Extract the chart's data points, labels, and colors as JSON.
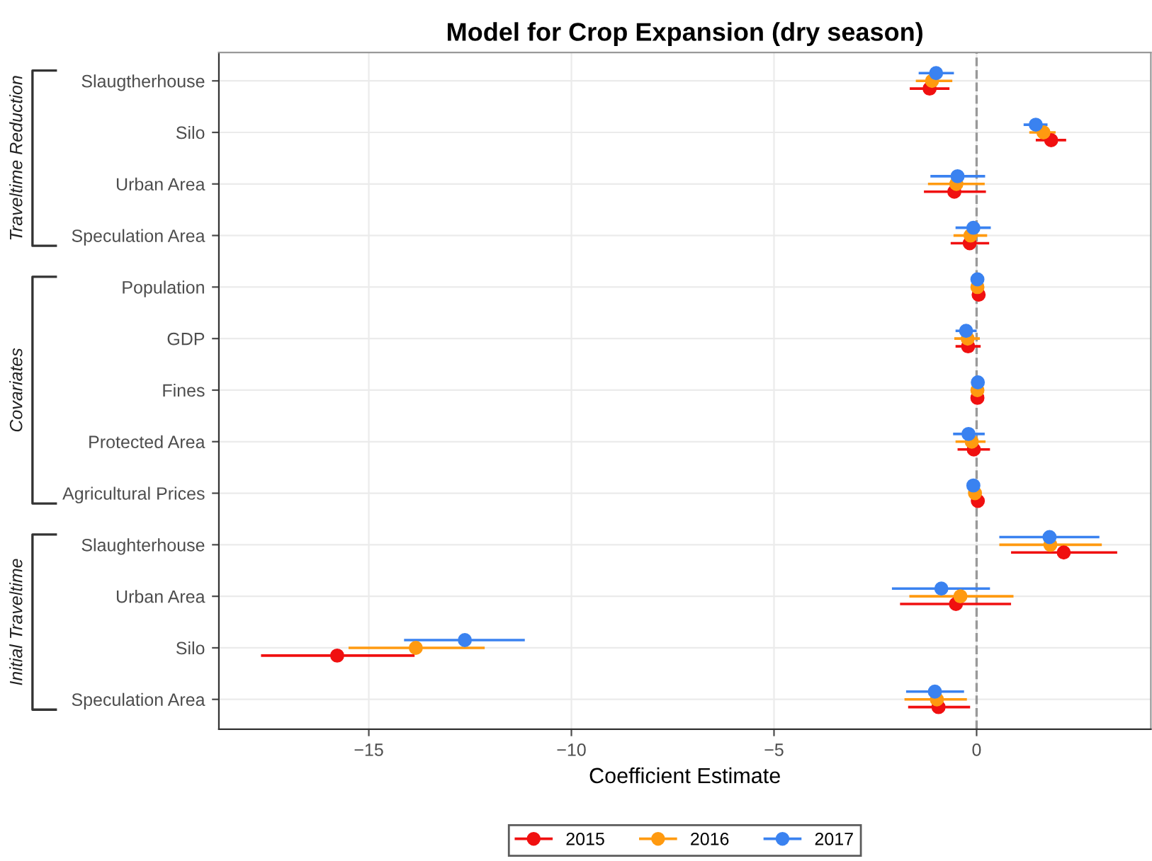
{
  "chart_data": {
    "type": "scatter",
    "title": "Model for Crop Expansion (dry season)",
    "xlabel": "Coefficient Estimate",
    "orientation": "horizontal",
    "categories": [
      "Slaugtherhouse",
      "Silo",
      "Urban Area",
      "Speculation Area",
      "Population",
      "GDP",
      "Fines",
      "Protected Area",
      "Agricultural Prices",
      "Slaughterhouse",
      "Urban Area",
      "Silo",
      "Speculation Area"
    ],
    "annotations": [
      "Traveltime Reduction",
      "Covariates",
      "Initial Traveltime"
    ],
    "series": [
      {
        "name": "2015",
        "color": "#f01010",
        "values": [
          -1.16,
          1.84,
          -0.55,
          -0.17,
          0.05,
          -0.21,
          0.02,
          -0.07,
          0.03,
          2.15,
          -0.51,
          -15.78,
          -0.94
        ],
        "errors": [
          [
            -1.65,
            -0.67
          ],
          [
            1.46,
            2.21
          ],
          [
            -1.3,
            0.23
          ],
          [
            -0.64,
            0.31
          ],
          [
            -0.08,
            0.15
          ],
          [
            -0.52,
            0.1
          ],
          [
            -0.06,
            0.1
          ],
          [
            -0.47,
            0.33
          ],
          [
            -0.08,
            0.14
          ],
          [
            0.85,
            3.47
          ],
          [
            -1.89,
            0.85
          ],
          [
            -17.66,
            -13.87
          ],
          [
            -1.69,
            -0.16
          ]
        ]
      },
      {
        "name": "2016",
        "color": "#ff9a10",
        "values": [
          -1.1,
          1.65,
          -0.5,
          -0.15,
          0.02,
          -0.22,
          0.02,
          -0.12,
          -0.04,
          1.82,
          -0.4,
          -13.84,
          -0.98
        ],
        "errors": [
          [
            -1.5,
            -0.6
          ],
          [
            1.3,
            1.95
          ],
          [
            -1.2,
            0.2
          ],
          [
            -0.57,
            0.26
          ],
          [
            -0.08,
            0.12
          ],
          [
            -0.55,
            0.08
          ],
          [
            -0.06,
            0.1
          ],
          [
            -0.52,
            0.22
          ],
          [
            -0.14,
            0.06
          ],
          [
            0.56,
            3.09
          ],
          [
            -1.66,
            0.91
          ],
          [
            -15.5,
            -12.14
          ],
          [
            -1.78,
            -0.24
          ]
        ]
      },
      {
        "name": "2017",
        "color": "#3a82f0",
        "values": [
          -1.0,
          1.46,
          -0.47,
          -0.08,
          0.02,
          -0.26,
          0.03,
          -0.2,
          -0.08,
          1.8,
          -0.87,
          -12.63,
          -1.03
        ],
        "errors": [
          [
            -1.43,
            -0.56
          ],
          [
            1.16,
            1.75
          ],
          [
            -1.14,
            0.21
          ],
          [
            -0.52,
            0.35
          ],
          [
            -0.08,
            0.12
          ],
          [
            -0.52,
            0.0
          ],
          [
            -0.06,
            0.1
          ],
          [
            -0.58,
            0.2
          ],
          [
            -0.18,
            0.02
          ],
          [
            0.56,
            3.03
          ],
          [
            -2.09,
            0.33
          ],
          [
            -14.13,
            -11.15
          ],
          [
            -1.74,
            -0.31
          ]
        ]
      }
    ],
    "xlim": [
      -18.7,
      4.3
    ],
    "xticks": [
      -15,
      -10,
      -5,
      0
    ],
    "ref_lines": [
      {
        "axis": "x",
        "value": 0,
        "color": "#999999",
        "line_style": "dashed"
      }
    ],
    "marker": "circle",
    "grid": true,
    "legend": "bottom"
  }
}
